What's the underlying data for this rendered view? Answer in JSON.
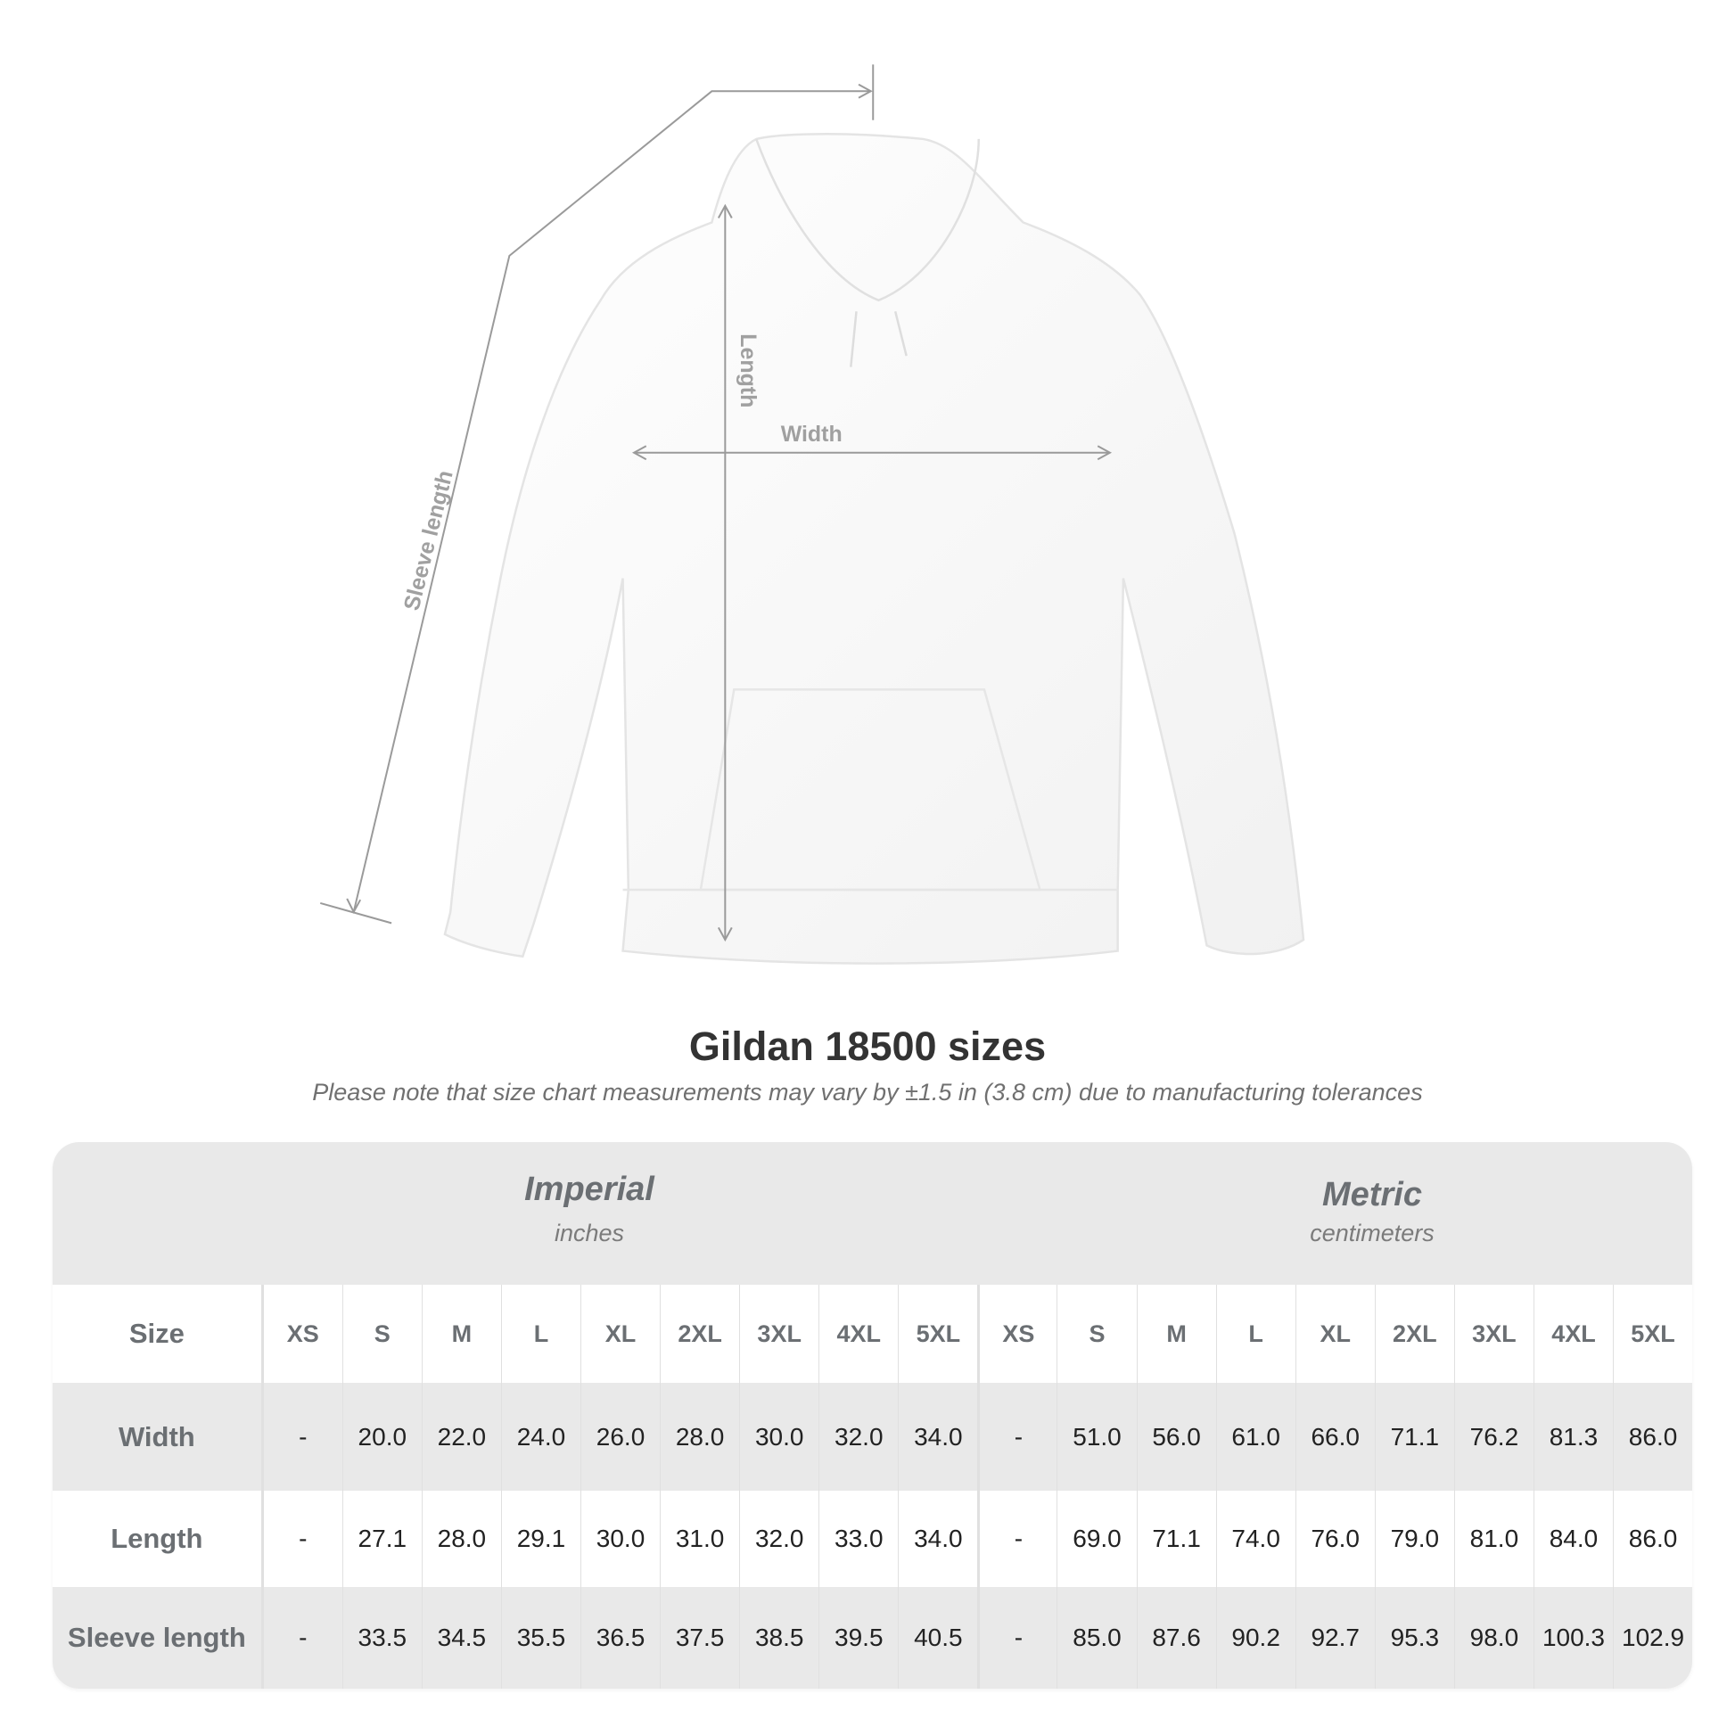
{
  "illustration": {
    "labels": {
      "sleeve": "Sleeve length",
      "length": "Length",
      "width": "Width"
    }
  },
  "title": "Gildan 18500 sizes",
  "subtitle": "Please note that size chart measurements may vary by ±1.5 in (3.8 cm) due to manufacturing tolerances",
  "table": {
    "imperial": {
      "name": "Imperial",
      "unit": "inches"
    },
    "metric": {
      "name": "Metric",
      "unit": "centimeters"
    },
    "size_label": "Size",
    "sizes": [
      "XS",
      "S",
      "M",
      "L",
      "XL",
      "2XL",
      "3XL",
      "4XL",
      "5XL"
    ],
    "rows": [
      {
        "label": "Width",
        "imperial": [
          "-",
          "20.0",
          "22.0",
          "24.0",
          "26.0",
          "28.0",
          "30.0",
          "32.0",
          "34.0"
        ],
        "metric": [
          "-",
          "51.0",
          "56.0",
          "61.0",
          "66.0",
          "71.1",
          "76.2",
          "81.3",
          "86.0"
        ]
      },
      {
        "label": "Length",
        "imperial": [
          "-",
          "27.1",
          "28.0",
          "29.1",
          "30.0",
          "31.0",
          "32.0",
          "33.0",
          "34.0"
        ],
        "metric": [
          "-",
          "69.0",
          "71.1",
          "74.0",
          "76.0",
          "79.0",
          "81.0",
          "84.0",
          "86.0"
        ]
      },
      {
        "label": "Sleeve length",
        "imperial": [
          "-",
          "33.5",
          "34.5",
          "35.5",
          "36.5",
          "37.5",
          "38.5",
          "39.5",
          "40.5"
        ],
        "metric": [
          "-",
          "85.0",
          "87.6",
          "90.2",
          "92.7",
          "95.3",
          "98.0",
          "100.3",
          "102.9"
        ]
      }
    ]
  }
}
